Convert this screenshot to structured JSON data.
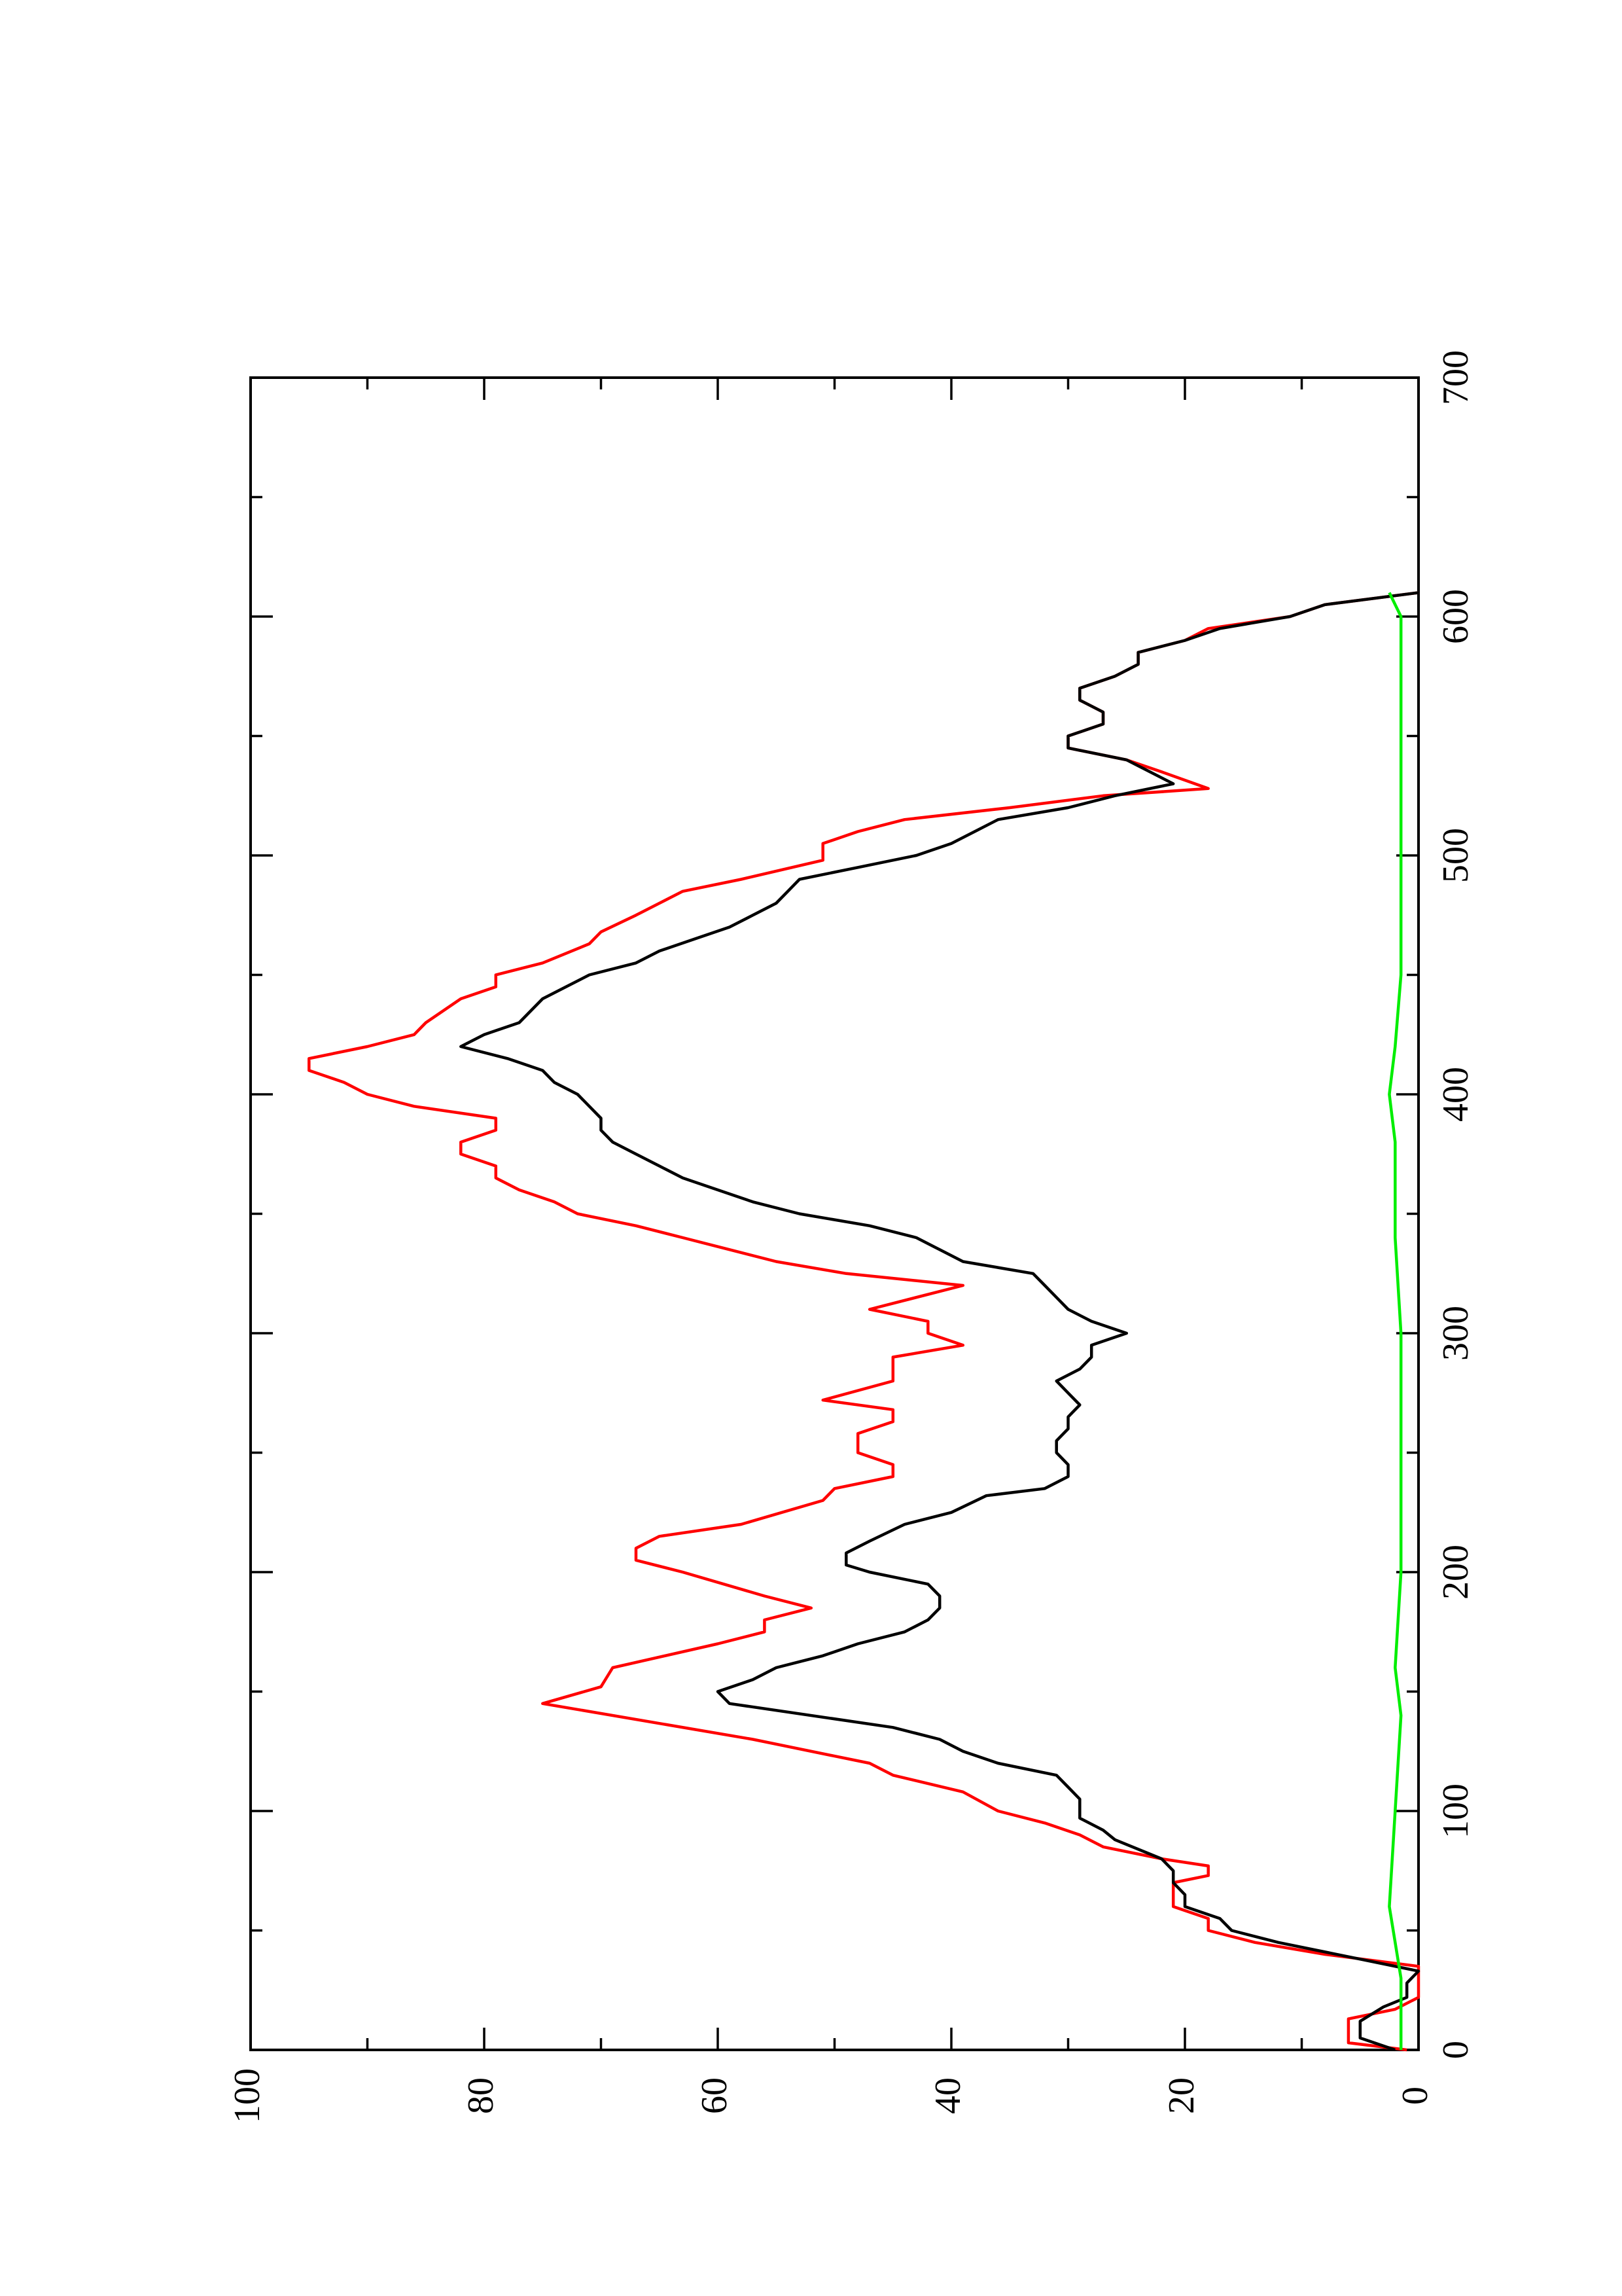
{
  "chart_data": {
    "type": "line",
    "orientation": "rotated-90-counterclockwise",
    "title": "",
    "xlabel": "",
    "ylabel": "",
    "grid": false,
    "xlim": [
      0,
      700
    ],
    "ylim": [
      0,
      100
    ],
    "x_major_ticks": [
      0,
      100,
      200,
      300,
      400,
      500,
      600,
      700
    ],
    "x_minor_ticks": [
      50,
      150,
      250,
      350,
      450,
      550,
      650
    ],
    "x_tick_labels": [
      "0",
      "100",
      "200",
      "300",
      "400",
      "500",
      "600",
      "700"
    ],
    "y_major_ticks": [
      0,
      20,
      40,
      60,
      80,
      100
    ],
    "y_minor_ticks": [
      10,
      30,
      50,
      70,
      90
    ],
    "y_tick_labels": [
      "0",
      "20",
      "40",
      "60",
      "80",
      "100"
    ],
    "series": [
      {
        "color": "#ff0000",
        "points": [
          [
            0,
            1
          ],
          [
            3,
            6
          ],
          [
            13,
            6
          ],
          [
            17,
            2
          ],
          [
            22,
            0
          ],
          [
            35,
            0
          ],
          [
            40,
            8
          ],
          [
            45,
            14
          ],
          [
            50,
            18
          ],
          [
            55,
            18
          ],
          [
            60,
            21
          ],
          [
            65,
            21
          ],
          [
            70,
            21
          ],
          [
            73,
            18
          ],
          [
            77,
            18
          ],
          [
            80,
            22
          ],
          [
            85,
            27
          ],
          [
            90,
            29
          ],
          [
            95,
            32
          ],
          [
            100,
            36
          ],
          [
            108,
            39
          ],
          [
            115,
            45
          ],
          [
            120,
            47
          ],
          [
            123,
            50
          ],
          [
            130,
            57
          ],
          [
            145,
            75
          ],
          [
            152,
            70
          ],
          [
            160,
            69
          ],
          [
            170,
            60
          ],
          [
            175,
            56
          ],
          [
            180,
            56
          ],
          [
            185,
            52
          ],
          [
            190,
            56
          ],
          [
            200,
            63
          ],
          [
            205,
            67
          ],
          [
            210,
            67
          ],
          [
            215,
            65
          ],
          [
            220,
            58
          ],
          [
            230,
            51
          ],
          [
            235,
            50
          ],
          [
            240,
            45
          ],
          [
            245,
            45
          ],
          [
            250,
            48
          ],
          [
            258,
            48
          ],
          [
            263,
            45
          ],
          [
            268,
            45
          ],
          [
            272,
            51
          ],
          [
            280,
            45
          ],
          [
            290,
            45
          ],
          [
            295,
            39
          ],
          [
            300,
            42
          ],
          [
            305,
            42
          ],
          [
            310,
            47
          ],
          [
            320,
            39
          ],
          [
            325,
            49
          ],
          [
            330,
            55
          ],
          [
            340,
            63
          ],
          [
            345,
            67
          ],
          [
            350,
            72
          ],
          [
            355,
            74
          ],
          [
            360,
            77
          ],
          [
            365,
            79
          ],
          [
            370,
            79
          ],
          [
            375,
            82
          ],
          [
            380,
            82
          ],
          [
            385,
            79
          ],
          [
            390,
            79
          ],
          [
            395,
            86
          ],
          [
            400,
            90
          ],
          [
            405,
            92
          ],
          [
            410,
            95
          ],
          [
            415,
            95
          ],
          [
            420,
            90
          ],
          [
            425,
            86
          ],
          [
            430,
            85
          ],
          [
            440,
            82
          ],
          [
            445,
            79
          ],
          [
            450,
            79
          ],
          [
            455,
            75
          ],
          [
            463,
            71
          ],
          [
            468,
            70
          ],
          [
            475,
            67
          ],
          [
            480,
            65
          ],
          [
            485,
            63
          ],
          [
            490,
            58
          ],
          [
            498,
            51
          ],
          [
            505,
            51
          ],
          [
            510,
            48
          ],
          [
            515,
            44
          ],
          [
            520,
            35
          ],
          [
            525,
            27
          ],
          [
            528,
            18
          ],
          [
            535,
            22
          ],
          [
            540,
            25
          ],
          [
            545,
            30
          ],
          [
            550,
            30
          ],
          [
            555,
            27
          ],
          [
            560,
            27
          ],
          [
            565,
            29
          ],
          [
            570,
            29
          ],
          [
            575,
            26
          ],
          [
            580,
            24
          ],
          [
            585,
            24
          ],
          [
            590,
            20
          ],
          [
            595,
            18
          ],
          [
            600,
            11
          ],
          [
            605,
            8
          ],
          [
            610,
            0
          ]
        ]
      },
      {
        "color": "#000000",
        "points": [
          [
            0,
            2
          ],
          [
            5,
            5
          ],
          [
            12,
            5
          ],
          [
            18,
            3
          ],
          [
            22,
            1
          ],
          [
            28,
            1
          ],
          [
            33,
            0
          ],
          [
            38,
            5
          ],
          [
            45,
            12
          ],
          [
            50,
            16
          ],
          [
            55,
            17
          ],
          [
            60,
            20
          ],
          [
            65,
            20
          ],
          [
            70,
            21
          ],
          [
            75,
            21
          ],
          [
            80,
            22
          ],
          [
            88,
            26
          ],
          [
            92,
            27
          ],
          [
            97,
            29
          ],
          [
            100,
            29
          ],
          [
            105,
            29
          ],
          [
            110,
            30
          ],
          [
            115,
            31
          ],
          [
            120,
            36
          ],
          [
            125,
            39
          ],
          [
            130,
            41
          ],
          [
            135,
            45
          ],
          [
            145,
            59
          ],
          [
            150,
            60
          ],
          [
            155,
            57
          ],
          [
            160,
            55
          ],
          [
            165,
            51
          ],
          [
            170,
            48
          ],
          [
            175,
            44
          ],
          [
            180,
            42
          ],
          [
            185,
            41
          ],
          [
            190,
            41
          ],
          [
            195,
            42
          ],
          [
            200,
            47
          ],
          [
            203,
            49
          ],
          [
            208,
            49
          ],
          [
            213,
            47
          ],
          [
            220,
            44
          ],
          [
            225,
            40
          ],
          [
            232,
            37
          ],
          [
            235,
            32
          ],
          [
            240,
            30
          ],
          [
            245,
            30
          ],
          [
            250,
            31
          ],
          [
            255,
            31
          ],
          [
            260,
            30
          ],
          [
            265,
            30
          ],
          [
            270,
            29
          ],
          [
            275,
            30
          ],
          [
            280,
            31
          ],
          [
            285,
            29
          ],
          [
            290,
            28
          ],
          [
            295,
            28
          ],
          [
            300,
            25
          ],
          [
            305,
            28
          ],
          [
            310,
            30
          ],
          [
            315,
            31
          ],
          [
            320,
            32
          ],
          [
            325,
            33
          ],
          [
            330,
            39
          ],
          [
            335,
            41
          ],
          [
            340,
            43
          ],
          [
            345,
            47
          ],
          [
            350,
            53
          ],
          [
            355,
            57
          ],
          [
            360,
            60
          ],
          [
            365,
            63
          ],
          [
            370,
            65
          ],
          [
            375,
            67
          ],
          [
            380,
            69
          ],
          [
            385,
            70
          ],
          [
            390,
            70
          ],
          [
            395,
            71
          ],
          [
            400,
            72
          ],
          [
            405,
            74
          ],
          [
            410,
            75
          ],
          [
            415,
            78
          ],
          [
            420,
            82
          ],
          [
            425,
            80
          ],
          [
            430,
            77
          ],
          [
            440,
            75
          ],
          [
            445,
            73
          ],
          [
            450,
            71
          ],
          [
            455,
            67
          ],
          [
            460,
            65
          ],
          [
            465,
            62
          ],
          [
            470,
            59
          ],
          [
            475,
            57
          ],
          [
            480,
            55
          ],
          [
            485,
            54
          ],
          [
            490,
            53
          ],
          [
            495,
            48
          ],
          [
            500,
            43
          ],
          [
            505,
            40
          ],
          [
            510,
            38
          ],
          [
            515,
            36
          ],
          [
            520,
            30
          ],
          [
            525,
            26
          ],
          [
            530,
            21
          ],
          [
            535,
            23
          ],
          [
            540,
            25
          ],
          [
            545,
            30
          ],
          [
            550,
            30
          ],
          [
            555,
            27
          ],
          [
            560,
            27
          ],
          [
            565,
            29
          ],
          [
            570,
            29
          ],
          [
            575,
            26
          ],
          [
            580,
            24
          ],
          [
            585,
            24
          ],
          [
            590,
            20
          ],
          [
            595,
            17
          ],
          [
            600,
            11
          ],
          [
            605,
            8
          ],
          [
            610,
            0
          ]
        ]
      },
      {
        "color": "#00ee00",
        "points": [
          [
            0,
            1.5
          ],
          [
            30,
            1.5
          ],
          [
            60,
            2.5
          ],
          [
            100,
            2
          ],
          [
            140,
            1.5
          ],
          [
            160,
            2
          ],
          [
            200,
            1.5
          ],
          [
            220,
            1.5
          ],
          [
            260,
            1.5
          ],
          [
            300,
            1.5
          ],
          [
            340,
            2
          ],
          [
            380,
            2
          ],
          [
            400,
            2.5
          ],
          [
            420,
            2
          ],
          [
            450,
            1.5
          ],
          [
            480,
            1.5
          ],
          [
            520,
            1.5
          ],
          [
            560,
            1.5
          ],
          [
            600,
            1.5
          ],
          [
            610,
            2.5
          ]
        ]
      }
    ]
  }
}
